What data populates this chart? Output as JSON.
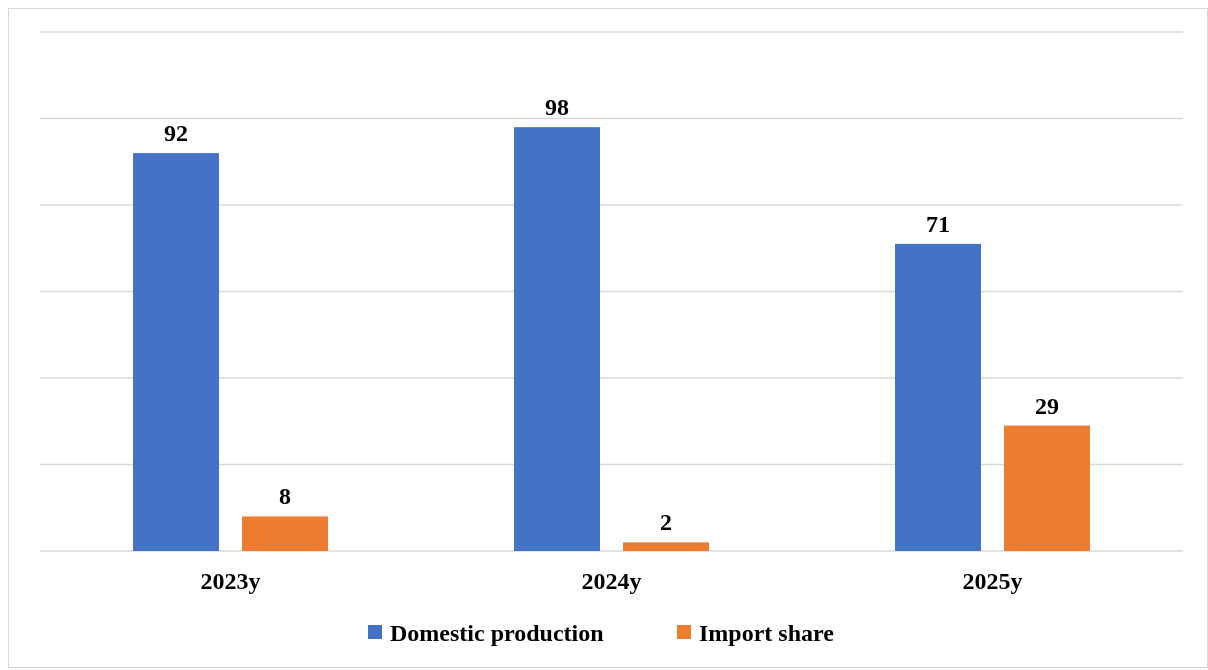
{
  "chart_data": {
    "type": "bar",
    "categories": [
      "2023y",
      "2024y",
      "2025y"
    ],
    "series": [
      {
        "name": "Domestic production",
        "color": "#4472c4",
        "values": [
          92,
          98,
          71
        ]
      },
      {
        "name": "Import share",
        "color": "#ed7d31",
        "values": [
          8,
          2,
          29
        ]
      }
    ],
    "ylim": [
      0,
      120
    ],
    "yticks": [
      {
        "value": 0,
        "label": null
      },
      {
        "value": 20,
        "label": null
      },
      {
        "value": 40,
        "label": null
      },
      {
        "value": 60,
        "label": null
      },
      {
        "value": 80,
        "label": null
      },
      {
        "value": 100,
        "label": null
      },
      {
        "value": 120,
        "label": null
      }
    ],
    "grid": "y",
    "tick_labels": "x",
    "data_labels": true,
    "legend": "bottom"
  }
}
